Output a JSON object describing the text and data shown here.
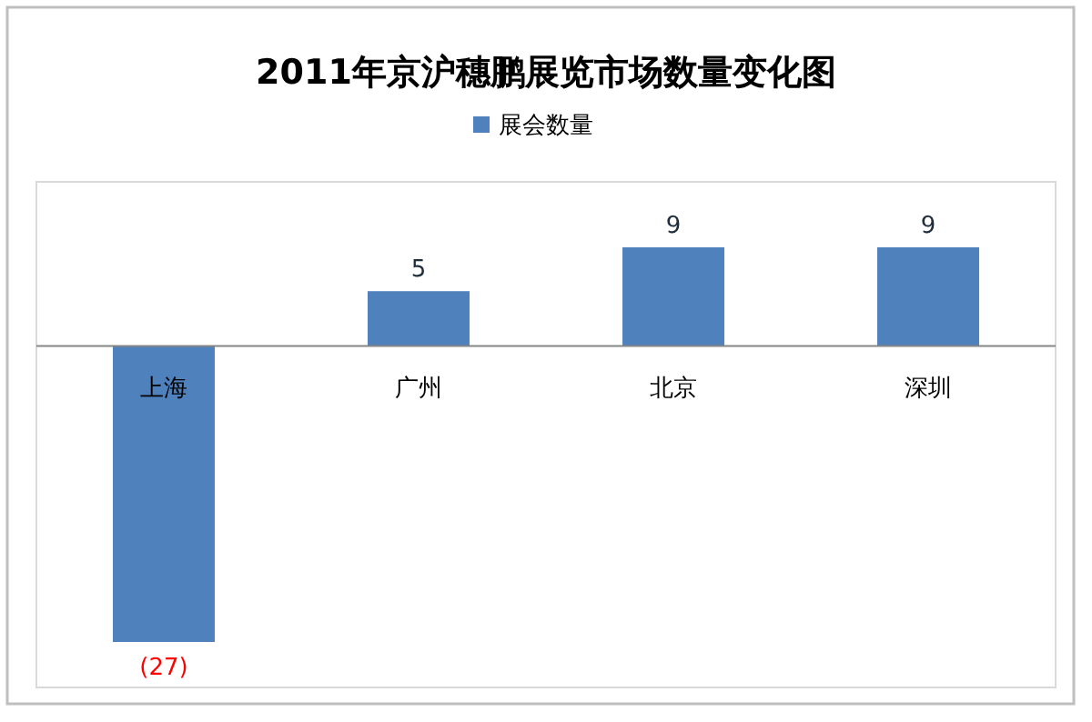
{
  "chart_data": {
    "type": "bar",
    "title": "2011年京沪穗鹏展览市场数量变化图",
    "categories": [
      "上海",
      "广州",
      "北京",
      "深圳"
    ],
    "series": [
      {
        "name": "展会数量",
        "color": "#4f81bd",
        "values": [
          -27,
          5,
          9,
          9
        ],
        "value_labels": [
          "(27)",
          "5",
          "9",
          "9"
        ]
      }
    ],
    "legend": "top"
  }
}
